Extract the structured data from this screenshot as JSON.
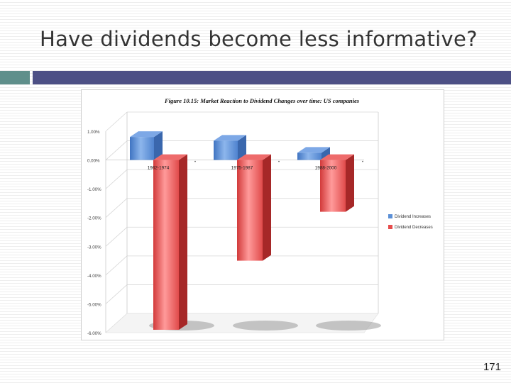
{
  "slide": {
    "title": "Have dividends become less informative?",
    "page_number": "171"
  },
  "colors": {
    "accent_left": "#5f8f8b",
    "accent_right": "#4d5085",
    "increase_color": "#5b8fd6",
    "decrease_color": "#e64c4c"
  },
  "chart_data": {
    "type": "bar",
    "title": "Figure 10.15: Market Reaction to Dividend Changes over time: US companies",
    "categories": [
      "1962-1974",
      "1975-1987",
      "1988-2000"
    ],
    "series": [
      {
        "name": "Dividend Increases",
        "values": [
          0.8,
          0.67,
          0.25
        ],
        "color": "#5b8fd6"
      },
      {
        "name": "Dividend Decreases",
        "values": [
          -5.9,
          -3.5,
          -1.8
        ],
        "color": "#e64c4c"
      }
    ],
    "ylim": [
      -6,
      1
    ],
    "yticks": [
      "1.00%",
      "0.00%",
      "-1.00%",
      "-2.00%",
      "-3.00%",
      "-4.00%",
      "-5.00%",
      "-6.00%"
    ],
    "yunit": "%",
    "legend_position": "right",
    "style": "3d-bar",
    "grid": true
  }
}
